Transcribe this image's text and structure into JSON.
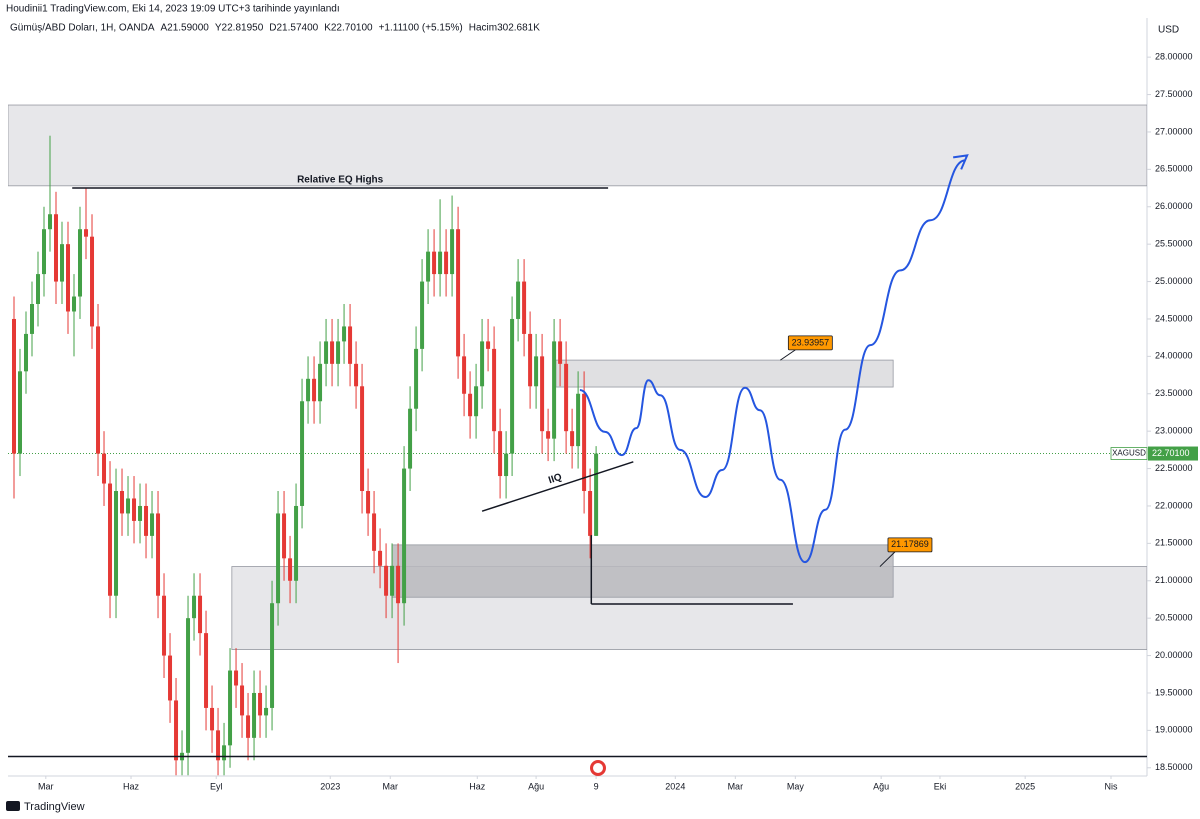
{
  "header": {
    "published": "Houdinii1 TradingView.com, Eki 14, 2023 19:09 UTC+3 tarihinde yayınlandı",
    "legend": [
      "Gümüş/ABD Doları, 1H, OANDA",
      "A21.59000",
      "Y22.81950",
      "D21.57400",
      "K22.70100",
      "+1.11100 (+5.15%)",
      "Hacim302.681K"
    ],
    "currency": "USD"
  },
  "footer": "TradingView",
  "chart_data": {
    "type": "candlestick",
    "series": [
      {
        "name": "XAGUSD",
        "up_color": "#43a047",
        "down_color": "#e53935",
        "open": [
          24.5,
          22.7,
          23.8,
          24.3,
          24.7,
          25.1,
          25.7,
          25.9,
          25.0,
          25.5,
          24.6,
          24.8,
          25.7,
          25.6,
          24.4,
          22.7,
          22.3,
          20.8,
          22.2,
          21.9,
          22.1,
          21.8,
          22.0,
          21.6,
          21.9,
          20.8,
          20.0,
          19.4,
          18.6,
          18.7,
          20.5,
          20.8,
          20.3,
          19.3,
          19.0,
          18.6,
          18.8,
          19.8,
          19.6,
          19.2,
          18.9,
          19.5,
          19.2,
          19.3,
          20.7,
          21.9,
          21.3,
          21.0,
          22.0,
          23.4,
          23.7,
          23.4,
          23.9,
          24.2,
          23.9,
          24.2,
          24.4,
          23.9,
          23.6,
          22.2,
          21.9,
          21.4,
          21.2,
          20.8,
          21.2,
          20.7,
          22.5,
          23.3,
          24.1,
          25.0,
          25.4,
          25.1,
          25.4,
          25.1,
          25.7,
          24.0,
          23.5,
          23.2,
          23.6,
          24.2,
          24.1,
          23.0,
          22.4,
          22.7,
          24.5,
          25.0,
          24.3,
          23.6,
          24.0,
          23.0,
          22.9,
          24.2,
          23.9,
          23.0,
          22.8,
          23.5,
          22.2,
          21.6
        ],
        "high": [
          24.8,
          24.1,
          24.6,
          25.0,
          25.4,
          26.0,
          26.95,
          26.2,
          25.8,
          25.8,
          25.1,
          26.0,
          26.25,
          25.9,
          24.7,
          23.0,
          22.6,
          22.5,
          22.5,
          22.4,
          22.4,
          22.3,
          22.3,
          22.2,
          22.2,
          21.1,
          20.3,
          19.7,
          19.0,
          20.8,
          21.1,
          21.1,
          20.6,
          19.6,
          19.3,
          19.1,
          20.1,
          20.1,
          19.9,
          19.5,
          19.8,
          19.8,
          19.6,
          21.0,
          22.2,
          22.2,
          21.6,
          22.3,
          23.7,
          24.0,
          24.0,
          24.2,
          24.5,
          24.5,
          24.5,
          24.7,
          24.7,
          24.2,
          23.9,
          22.5,
          22.2,
          21.7,
          21.5,
          21.5,
          21.5,
          22.8,
          23.6,
          24.4,
          25.3,
          25.7,
          25.7,
          26.1,
          25.7,
          26.15,
          26.0,
          24.3,
          23.8,
          23.9,
          24.5,
          24.5,
          24.4,
          23.3,
          23.0,
          24.8,
          25.3,
          25.3,
          24.6,
          24.3,
          24.3,
          23.3,
          24.5,
          24.5,
          24.2,
          23.3,
          23.8,
          23.8,
          22.5,
          22.8
        ],
        "low": [
          22.1,
          22.4,
          23.5,
          24.0,
          24.4,
          24.8,
          25.4,
          24.7,
          24.7,
          24.3,
          24.0,
          24.5,
          25.3,
          24.1,
          22.4,
          22.0,
          20.5,
          20.5,
          21.6,
          21.6,
          21.5,
          21.5,
          21.3,
          21.3,
          20.5,
          19.7,
          19.1,
          18.4,
          18.4,
          18.4,
          20.2,
          20.0,
          19.0,
          18.7,
          18.4,
          18.4,
          18.5,
          19.3,
          18.9,
          18.6,
          18.6,
          18.9,
          18.9,
          19.0,
          20.4,
          21.0,
          20.7,
          20.7,
          21.7,
          23.1,
          23.1,
          23.1,
          23.6,
          23.6,
          23.6,
          23.9,
          23.6,
          23.3,
          21.9,
          21.6,
          21.1,
          20.9,
          20.5,
          20.5,
          19.9,
          20.4,
          22.2,
          23.0,
          23.8,
          24.7,
          24.8,
          24.8,
          24.8,
          24.8,
          23.7,
          23.2,
          22.9,
          22.9,
          23.3,
          23.8,
          22.7,
          22.1,
          22.1,
          22.4,
          24.2,
          24.0,
          23.3,
          23.3,
          22.7,
          22.6,
          22.6,
          23.6,
          22.7,
          22.5,
          22.5,
          21.9,
          21.3,
          21.6
        ],
        "close": [
          22.7,
          23.8,
          24.3,
          24.7,
          25.1,
          25.7,
          25.9,
          25.0,
          25.5,
          24.6,
          24.8,
          25.7,
          25.6,
          24.4,
          22.7,
          22.3,
          20.8,
          22.2,
          21.9,
          22.1,
          21.8,
          22.0,
          21.6,
          21.9,
          20.8,
          20.0,
          19.4,
          18.6,
          18.7,
          20.5,
          20.8,
          20.3,
          19.3,
          19.0,
          18.6,
          18.8,
          19.8,
          19.6,
          19.2,
          18.9,
          19.5,
          19.2,
          19.3,
          20.7,
          21.9,
          21.3,
          21.0,
          22.0,
          23.4,
          23.7,
          23.4,
          23.9,
          24.2,
          23.9,
          24.2,
          24.4,
          23.9,
          23.6,
          22.2,
          21.9,
          21.4,
          21.2,
          20.8,
          21.2,
          20.7,
          22.5,
          23.3,
          24.1,
          25.0,
          25.4,
          25.1,
          25.4,
          25.1,
          25.7,
          24.0,
          23.5,
          23.2,
          23.6,
          24.2,
          24.1,
          23.0,
          22.4,
          22.7,
          24.5,
          25.0,
          24.3,
          23.6,
          24.0,
          23.0,
          22.9,
          24.2,
          23.9,
          23.0,
          22.8,
          23.5,
          22.2,
          21.6,
          22.7
        ]
      }
    ],
    "last_price": {
      "value": 22.701,
      "label": "22.70100"
    },
    "xlim": [
      -1,
      188.8
    ],
    "xticks": [
      {
        "value": 5.3,
        "label": "Mar"
      },
      {
        "value": 19.5,
        "label": "Haz"
      },
      {
        "value": 33.7,
        "label": "Eyl"
      },
      {
        "value": 52.7,
        "label": "2023"
      },
      {
        "value": 62.7,
        "label": "Mar"
      },
      {
        "value": 77.2,
        "label": "Haz"
      },
      {
        "value": 87,
        "label": "Ağu"
      },
      {
        "value": 97,
        "label": "9"
      },
      {
        "value": 110.2,
        "label": "2024"
      },
      {
        "value": 120.2,
        "label": "Mar"
      },
      {
        "value": 130.2,
        "label": "May"
      },
      {
        "value": 144.5,
        "label": "Ağu"
      },
      {
        "value": 154.3,
        "label": "Eki"
      },
      {
        "value": 168.5,
        "label": "2025"
      },
      {
        "value": 182.8,
        "label": "Nis"
      }
    ],
    "ylim": [
      18.39,
      28.47
    ],
    "yticks": [
      {
        "value": 18.5,
        "label": "18.50000"
      },
      {
        "value": 19,
        "label": "19.00000"
      },
      {
        "value": 19.5,
        "label": "19.50000"
      },
      {
        "value": 20,
        "label": "20.00000"
      },
      {
        "value": 20.5,
        "label": "20.50000"
      },
      {
        "value": 21,
        "label": "21.00000"
      },
      {
        "value": 21.5,
        "label": "21.50000"
      },
      {
        "value": 22,
        "label": "22.00000"
      },
      {
        "value": 22.5,
        "label": "22.50000"
      },
      {
        "value": 23,
        "label": "23.00000"
      },
      {
        "value": 23.5,
        "label": "23.50000"
      },
      {
        "value": 24,
        "label": "24.00000"
      },
      {
        "value": 24.5,
        "label": "24.50000"
      },
      {
        "value": 25,
        "label": "25.00000"
      },
      {
        "value": 25.5,
        "label": "25.50000"
      },
      {
        "value": 26,
        "label": "26.00000"
      },
      {
        "value": 26.5,
        "label": "26.50000"
      },
      {
        "value": 27,
        "label": "27.00000"
      },
      {
        "value": 27.5,
        "label": "27.50000"
      },
      {
        "value": 28,
        "label": "28.00000"
      }
    ],
    "zones": [
      {
        "x": [
          -1,
          188.8
        ],
        "y": [
          26.28,
          27.36
        ],
        "color": "#e3e3e6"
      },
      {
        "x": [
          36.3,
          188.8
        ],
        "y": [
          20.08,
          21.19
        ],
        "color": "#e3e3e6"
      },
      {
        "x": [
          63,
          146.5
        ],
        "y": [
          20.78,
          21.48
        ],
        "color": "#b8b8bd"
      },
      {
        "x": [
          90.3,
          146.5
        ],
        "y": [
          23.59,
          23.95
        ],
        "color": "#dadadd"
      }
    ],
    "lines": [
      {
        "x": [
          9.7,
          99
        ],
        "y": [
          26.25,
          26.25
        ],
        "label": "Relative EQ Highs"
      },
      {
        "x": [
          78,
          103.2
        ],
        "y": [
          21.93,
          22.59
        ],
        "label": "IIQ"
      },
      {
        "x": [
          -1,
          188.8
        ],
        "y": [
          18.65,
          18.65
        ]
      },
      {
        "x": [
          96.2,
          96.2
        ],
        "y": [
          21.61,
          20.69
        ]
      },
      {
        "x": [
          96.2,
          129.8
        ],
        "y": [
          20.69,
          20.69
        ]
      }
    ],
    "tags": [
      {
        "value": 23.93957,
        "x": 132.7,
        "y": 24.18,
        "anchor": [
          127.7,
          23.95
        ]
      },
      {
        "value": 21.17869,
        "x": 149.3,
        "y": 21.48,
        "anchor": [
          144.3,
          21.19
        ]
      }
    ],
    "projection": {
      "color": "#2556e0",
      "x": [
        94.3,
        98.5,
        101.3,
        103.7,
        105.7,
        107.7,
        111,
        115.2,
        118,
        121.8,
        124.3,
        127.7,
        131.8,
        135.2,
        138.5,
        142.7,
        147.7,
        152.7,
        158.5
      ],
      "y": [
        23.55,
        22.99,
        22.68,
        23.04,
        23.68,
        23.48,
        22.75,
        22.12,
        22.48,
        23.58,
        23.28,
        22.35,
        21.25,
        21.95,
        23.02,
        24.15,
        25.15,
        25.82,
        26.62
      ]
    }
  }
}
